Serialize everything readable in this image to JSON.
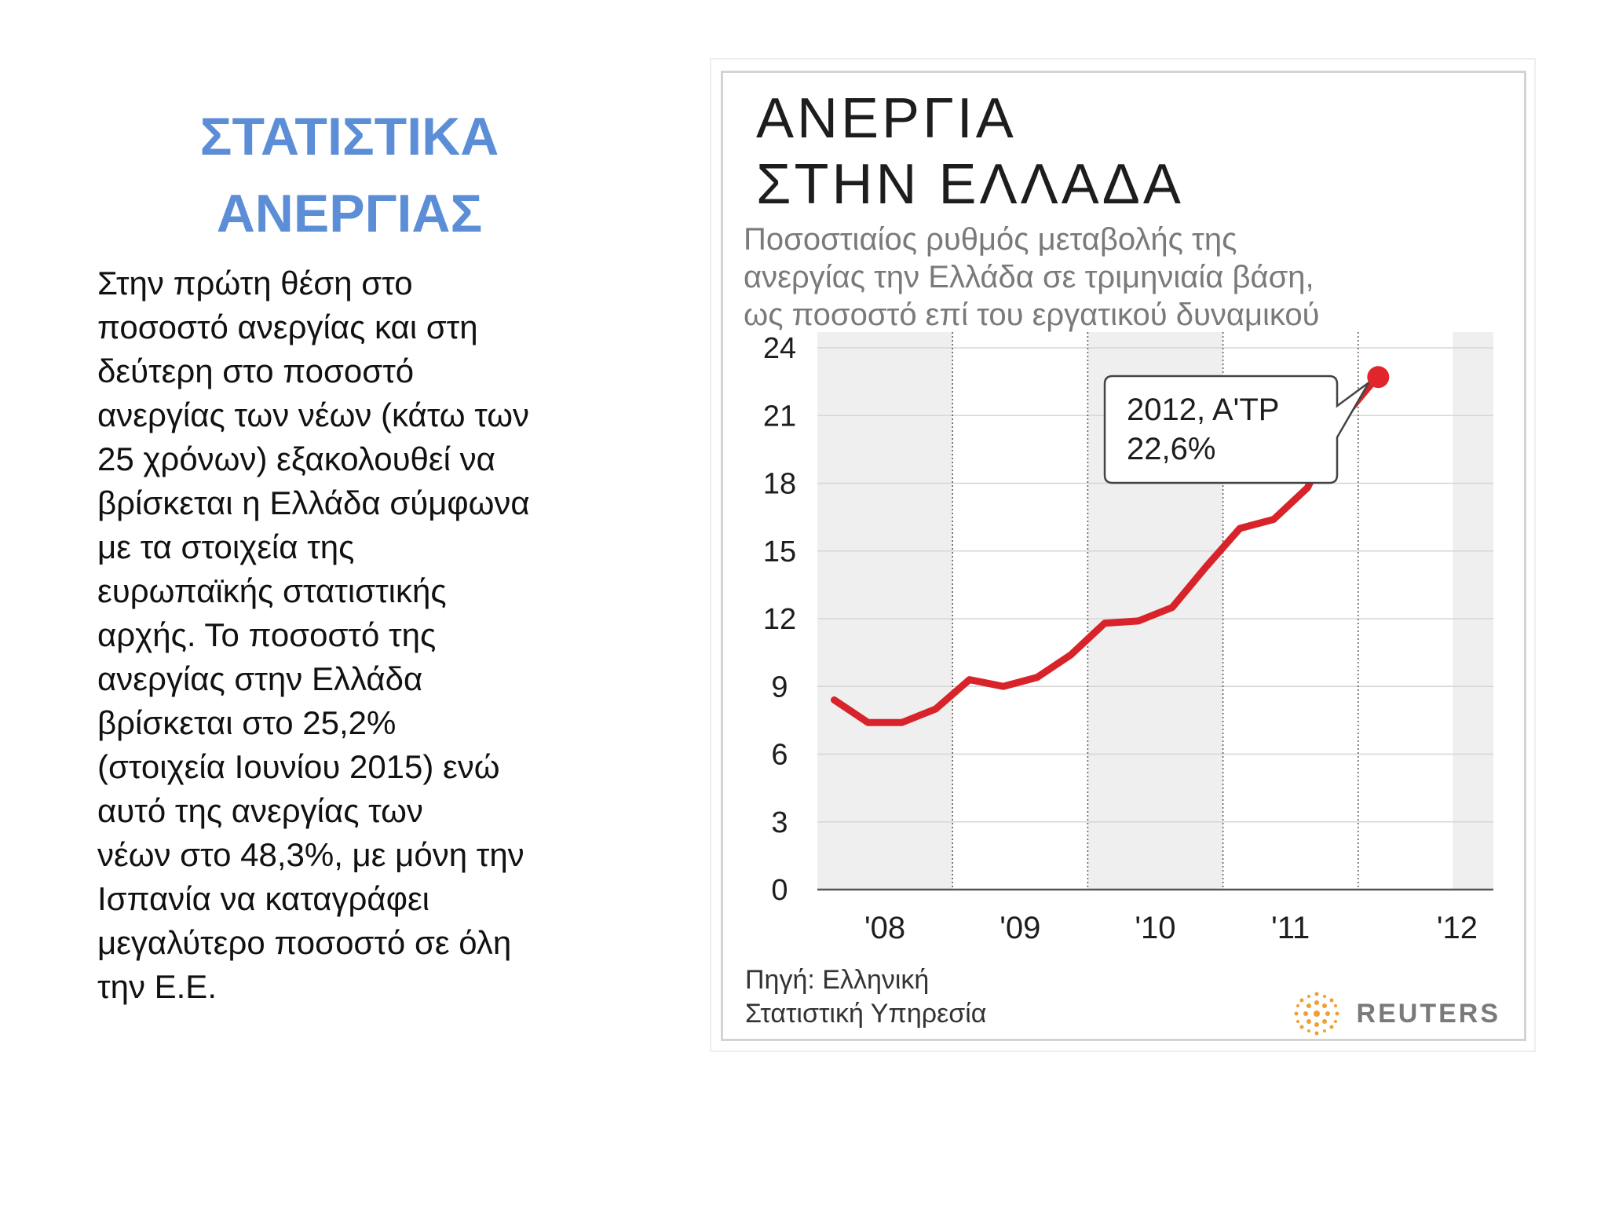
{
  "slide": {
    "title_lines": [
      "ΣΤΑΤΙΣΤΙΚΑ",
      "ΑΝΕΡΓΙΑΣ"
    ],
    "body_lines": [
      "Στην πρώτη θέση στο",
      "ποσοστό ανεργίας και στη",
      "δεύτερη στο ποσοστό",
      "ανεργίας των νέων (κάτω των",
      "25 χρόνων) εξακολουθεί να",
      "βρίσκεται η Ελλάδα σύμφωνα",
      "με τα στοιχεία της",
      "ευρωπαϊκής στατιστικής",
      "αρχής. Το ποσοστό της",
      "ανεργίας στην Ελλάδα",
      "βρίσκεται στο 25,2%",
      "(στοιχεία Ιουνίου 2015)  ενώ",
      "αυτό της ανεργίας των",
      "νέων  στο 48,3%, με μόνη την",
      "Ισπανία να καταγράφει",
      "μεγαλύτερο ποσοστό σε όλη",
      "την Ε.Ε."
    ]
  },
  "chart_data": {
    "type": "line",
    "title_lines": [
      "ΑΝΕΡΓΙΑ",
      "ΣΤΗΝ ΕΛΛΑΔΑ"
    ],
    "subtitle_lines": [
      "Ποσοστιαίος ρυθμός μεταβολής της",
      "ανεργίας την Ελλάδα σε τριμηνιαία βάση,",
      "ως ποσοστό επί του εργατικού δυναμικού"
    ],
    "x_tick_labels": [
      "'08",
      "'09",
      "'10",
      "'11",
      "'12"
    ],
    "y_ticks": [
      0,
      3,
      6,
      9,
      12,
      15,
      18,
      21,
      24
    ],
    "ylim": [
      0,
      24
    ],
    "grid": "horizontal",
    "shaded_years": [
      "'08",
      "'10",
      "'12"
    ],
    "series": [
      {
        "color": "#d8232a",
        "quarters": [
          "2008 Q1",
          "2008 Q2",
          "2008 Q3",
          "2008 Q4",
          "2009 Q1",
          "2009 Q2",
          "2009 Q3",
          "2009 Q4",
          "2010 Q1",
          "2010 Q2",
          "2010 Q3",
          "2010 Q4",
          "2011 Q1",
          "2011 Q2",
          "2011 Q3",
          "2011 Q4",
          "2012 Q1"
        ],
        "values": [
          8.4,
          7.4,
          7.4,
          8.0,
          9.3,
          9.0,
          9.4,
          10.4,
          11.8,
          11.9,
          12.5,
          14.3,
          16.0,
          16.4,
          17.8,
          20.8,
          22.6
        ]
      }
    ],
    "annotation": {
      "lines": [
        "2012, Α'ΤΡ",
        "22,6%"
      ],
      "point_value": 22.6
    },
    "source_lines": [
      "Πηγή: Ελληνική",
      "Στατιστική Υπηρεσία"
    ],
    "brand": "REUTERS"
  }
}
